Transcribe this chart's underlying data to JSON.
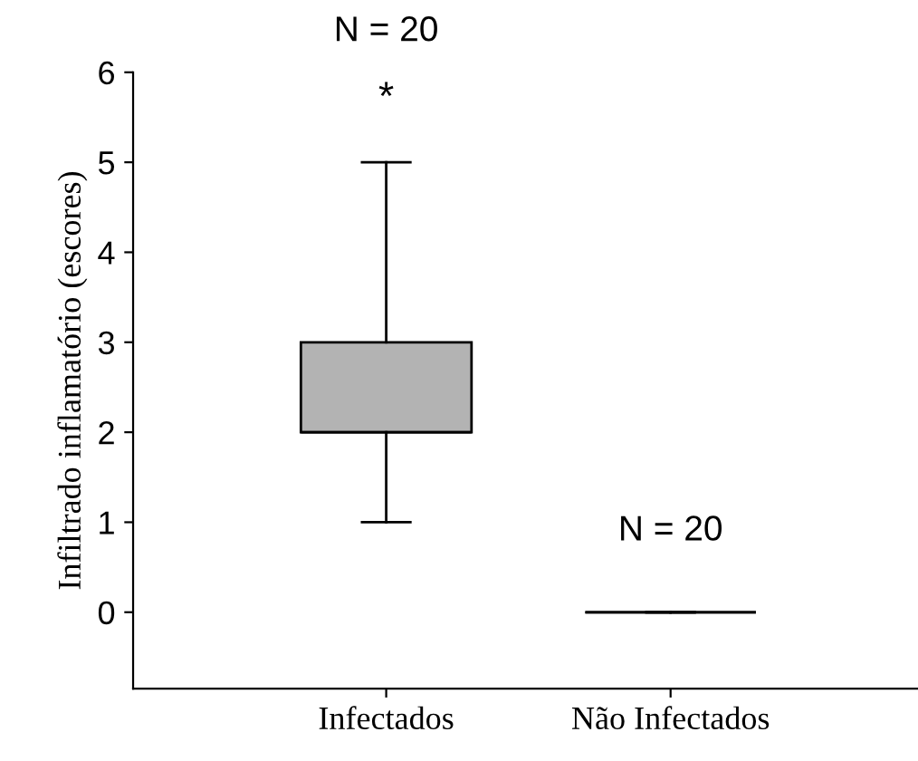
{
  "chart_data": {
    "type": "box",
    "ylabel": "Infiltrado inflamatório (escores)",
    "categories": [
      "Infectados",
      "Não Infectados"
    ],
    "boxes": [
      {
        "low": 1,
        "q1": 2,
        "median": 2,
        "q3": 3,
        "high": 5
      },
      {
        "low": 0,
        "q1": 0,
        "median": 0,
        "q3": 0,
        "high": 0
      }
    ],
    "colors": [
      "#b3b3b3",
      "#000000"
    ],
    "ylim": [
      -0.85,
      6
    ],
    "yticks": [
      0,
      1,
      2,
      3,
      4,
      5,
      6
    ],
    "grid": false,
    "annotations": [
      "N = 20",
      "*",
      "N = 20"
    ]
  }
}
